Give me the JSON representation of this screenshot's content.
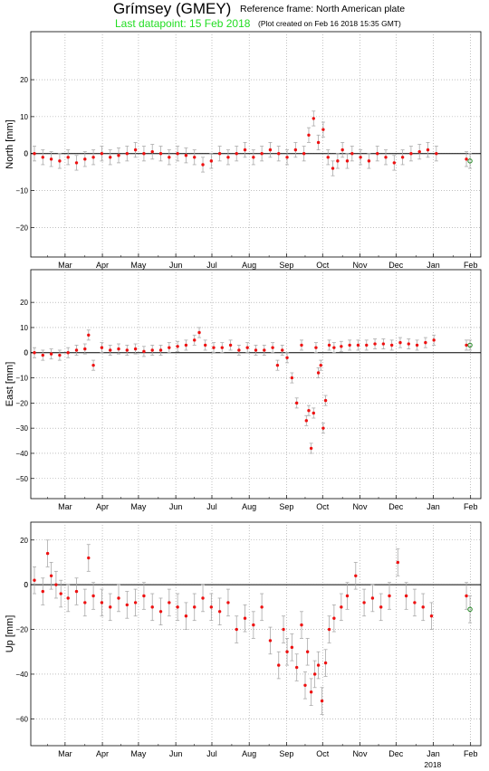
{
  "header": {
    "title": "Grímsey (GMEY)",
    "reference_frame": "Reference frame: North American plate",
    "last_datapoint": "Last datapoint: 15 Feb 2018",
    "plot_created": "(Plot created on Feb 16 2018 15:35 GMT)"
  },
  "colors": {
    "data_points": "#ee1111",
    "error_bars": "#aaaaaa",
    "latest_point": "#228822",
    "last_datapoint_text": "#22dd22",
    "grid": "#999999",
    "zero_line": "#000000"
  },
  "x_axis": {
    "month_labels": [
      "Mar",
      "Apr",
      "May",
      "Jun",
      "Jul",
      "Aug",
      "Sep",
      "Oct",
      "Nov",
      "Dec",
      "Jan",
      "Feb"
    ],
    "year_label": "2018"
  },
  "chart_data": [
    {
      "type": "scatter",
      "ylabel": "North [mm]",
      "xlim": [
        "2017-02-15",
        "2018-02-24"
      ],
      "ylim": [
        -28,
        33
      ],
      "yticks": [
        -20,
        -10,
        0,
        10,
        20
      ],
      "grid": true,
      "zero_line": true,
      "error_bar_mm": 2,
      "series": [
        {
          "x": [
            "2017-02-18",
            "2017-02-25",
            "2017-03-04",
            "2017-03-11",
            "2017-03-18",
            "2017-03-25",
            "2017-04-01",
            "2017-04-08",
            "2017-04-15",
            "2017-04-22",
            "2017-04-29",
            "2017-05-06",
            "2017-05-13",
            "2017-05-20",
            "2017-05-27",
            "2017-06-03",
            "2017-06-10",
            "2017-06-17",
            "2017-06-24",
            "2017-07-01",
            "2017-07-08",
            "2017-07-15",
            "2017-07-22",
            "2017-07-29",
            "2017-08-05",
            "2017-08-12",
            "2017-08-19",
            "2017-08-26",
            "2017-09-02",
            "2017-09-09",
            "2017-09-16",
            "2017-09-23",
            "2017-09-30",
            "2017-10-04",
            "2017-10-08",
            "2017-10-12",
            "2017-10-16",
            "2017-10-20",
            "2017-10-24",
            "2017-10-28",
            "2017-11-01",
            "2017-11-05",
            "2017-11-09",
            "2017-11-16",
            "2017-11-23",
            "2017-11-30",
            "2017-12-07",
            "2017-12-14",
            "2017-12-21",
            "2017-12-28",
            "2018-01-04",
            "2018-01-11",
            "2018-01-18",
            "2018-02-12",
            "2018-02-15"
          ],
          "y": [
            0,
            -1,
            -1.5,
            -2,
            -1,
            -2.5,
            -1.5,
            -1,
            0,
            -1,
            -0.5,
            0,
            1,
            0,
            0.5,
            0,
            -1,
            0,
            -0.5,
            -1,
            -3,
            -2,
            0,
            -1,
            0,
            1,
            -1,
            0,
            1,
            0,
            -1,
            1,
            0,
            5,
            9.5,
            3,
            6.5,
            -1,
            -4,
            -2,
            1,
            -2,
            0,
            -1,
            -2,
            0,
            -1,
            -2.5,
            -1,
            0,
            0.5,
            1,
            0,
            -1.5,
            -2
          ]
        }
      ]
    },
    {
      "type": "scatter",
      "ylabel": "East [mm]",
      "xlim": [
        "2017-02-15",
        "2018-02-24"
      ],
      "ylim": [
        -58,
        33
      ],
      "yticks": [
        -50,
        -40,
        -30,
        -20,
        -10,
        0,
        10,
        20
      ],
      "grid": true,
      "zero_line": true,
      "error_bar_mm": 2,
      "series": [
        {
          "x": [
            "2017-02-18",
            "2017-02-25",
            "2017-03-04",
            "2017-03-11",
            "2017-03-18",
            "2017-03-25",
            "2017-04-01",
            "2017-04-04",
            "2017-04-08",
            "2017-04-15",
            "2017-04-22",
            "2017-04-29",
            "2017-05-06",
            "2017-05-13",
            "2017-05-20",
            "2017-05-27",
            "2017-06-03",
            "2017-06-10",
            "2017-06-17",
            "2017-06-24",
            "2017-07-01",
            "2017-07-05",
            "2017-07-10",
            "2017-07-17",
            "2017-07-24",
            "2017-07-31",
            "2017-08-07",
            "2017-08-14",
            "2017-08-21",
            "2017-08-28",
            "2017-09-04",
            "2017-09-08",
            "2017-09-12",
            "2017-09-16",
            "2017-09-20",
            "2017-09-24",
            "2017-09-28",
            "2017-10-02",
            "2017-10-04",
            "2017-10-06",
            "2017-10-08",
            "2017-10-10",
            "2017-10-12",
            "2017-10-14",
            "2017-10-16",
            "2017-10-18",
            "2017-10-21",
            "2017-10-25",
            "2017-10-31",
            "2017-11-07",
            "2017-11-14",
            "2017-11-21",
            "2017-11-28",
            "2017-12-05",
            "2017-12-12",
            "2017-12-19",
            "2017-12-26",
            "2018-01-02",
            "2018-01-09",
            "2018-01-16",
            "2018-02-12",
            "2018-02-15"
          ],
          "y": [
            0,
            -1,
            -0.5,
            -1,
            0,
            1,
            1.5,
            7,
            -5,
            2,
            1,
            1.5,
            1,
            1.5,
            0.5,
            1,
            1,
            2,
            2.5,
            3,
            5,
            8,
            3,
            2,
            2,
            3,
            1,
            2,
            1,
            1,
            2,
            -5,
            1,
            -2,
            -10,
            -20,
            3,
            -27,
            -23,
            -38,
            -24,
            2,
            -8,
            -5,
            -30,
            -19,
            3,
            2,
            2.5,
            3,
            3,
            3,
            3.5,
            3.5,
            3,
            4,
            3.5,
            3,
            4,
            5,
            3,
            3
          ]
        }
      ]
    },
    {
      "type": "scatter",
      "ylabel": "Up [mm]",
      "xlim": [
        "2017-02-15",
        "2018-02-24"
      ],
      "ylim": [
        -72,
        28
      ],
      "yticks": [
        -60,
        -40,
        -20,
        0,
        20
      ],
      "grid": true,
      "zero_line": true,
      "error_bar_mm": 6,
      "series": [
        {
          "x": [
            "2017-02-18",
            "2017-02-25",
            "2017-03-01",
            "2017-03-04",
            "2017-03-08",
            "2017-03-12",
            "2017-03-18",
            "2017-03-25",
            "2017-04-01",
            "2017-04-04",
            "2017-04-08",
            "2017-04-15",
            "2017-04-22",
            "2017-04-29",
            "2017-05-06",
            "2017-05-13",
            "2017-05-20",
            "2017-05-27",
            "2017-06-03",
            "2017-06-10",
            "2017-06-17",
            "2017-06-24",
            "2017-07-01",
            "2017-07-08",
            "2017-07-15",
            "2017-07-22",
            "2017-07-29",
            "2017-08-05",
            "2017-08-12",
            "2017-08-19",
            "2017-08-26",
            "2017-09-02",
            "2017-09-09",
            "2017-09-13",
            "2017-09-16",
            "2017-09-20",
            "2017-09-24",
            "2017-09-28",
            "2017-10-01",
            "2017-10-03",
            "2017-10-06",
            "2017-10-09",
            "2017-10-12",
            "2017-10-15",
            "2017-10-18",
            "2017-10-21",
            "2017-10-25",
            "2017-10-31",
            "2017-11-05",
            "2017-11-12",
            "2017-11-19",
            "2017-11-26",
            "2017-12-03",
            "2017-12-10",
            "2017-12-17",
            "2017-12-24",
            "2017-12-31",
            "2018-01-07",
            "2018-01-14",
            "2018-02-12",
            "2018-02-15"
          ],
          "y": [
            2,
            -3,
            14,
            4,
            0,
            -4,
            -6,
            -3,
            -8,
            12,
            -5,
            -8,
            -10,
            -6,
            -9,
            -8,
            -5,
            -10,
            -12,
            -8,
            -10,
            -14,
            -10,
            -6,
            -10,
            -12,
            -8,
            -20,
            -15,
            -18,
            -10,
            -25,
            -36,
            -20,
            -30,
            -28,
            -37,
            -18,
            -45,
            -30,
            -48,
            -40,
            -36,
            -52,
            -35,
            -20,
            -15,
            -10,
            -5,
            4,
            -8,
            -6,
            -10,
            -5,
            10,
            -5,
            -8,
            -10,
            -14,
            -5,
            -11
          ]
        }
      ]
    }
  ]
}
